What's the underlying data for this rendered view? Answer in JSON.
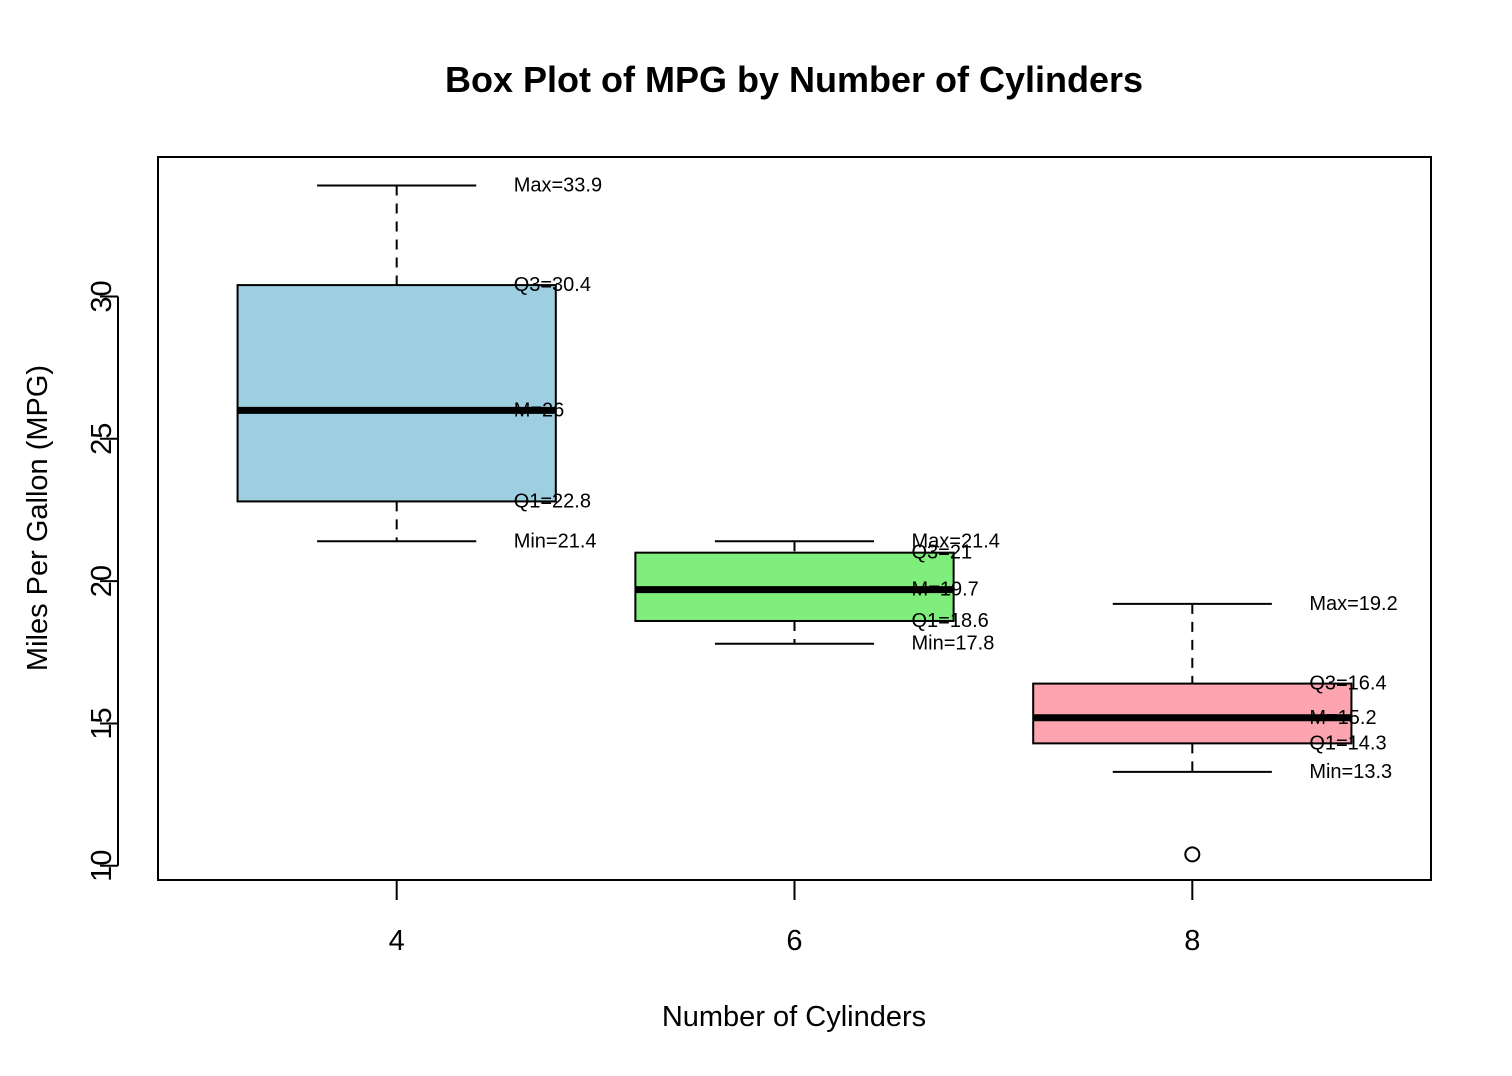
{
  "chart_data": {
    "type": "box",
    "title": "Box Plot of MPG by Number of Cylinders",
    "xlabel": "Number of Cylinders",
    "ylabel": "Miles Per Gallon (MPG)",
    "ylim": [
      9.5,
      34.9
    ],
    "y_ticks": [
      10,
      15,
      20,
      25,
      30
    ],
    "grid": false,
    "categories": [
      "4",
      "6",
      "8"
    ],
    "boxes": [
      {
        "category": "4",
        "min": 21.4,
        "q1": 22.8,
        "median": 26,
        "q3": 30.4,
        "max": 33.9,
        "outliers": [],
        "color": "#9ecfe0",
        "labels": {
          "max": "Max=33.9",
          "q3": "Q3=30.4",
          "median": "M=26",
          "q1": "Q1=22.8",
          "min": "Min=21.4"
        }
      },
      {
        "category": "6",
        "min": 17.8,
        "q1": 18.6,
        "median": 19.7,
        "q3": 21,
        "max": 21.4,
        "outliers": [],
        "color": "#80ee7c",
        "labels": {
          "max": "Max=21.4",
          "q3": "Q3=21",
          "median": "M=19.7",
          "q1": "Q1=18.6",
          "min": "Min=17.8"
        }
      },
      {
        "category": "8",
        "min": 13.3,
        "q1": 14.3,
        "median": 15.2,
        "q3": 16.4,
        "max": 19.2,
        "outliers": [
          10.4
        ],
        "color": "#fca4b0",
        "labels": {
          "max": "Max=19.2",
          "q3": "Q3=16.4",
          "median": "M=15.2",
          "q1": "Q1=14.3",
          "min": "Min=13.3"
        }
      }
    ]
  }
}
